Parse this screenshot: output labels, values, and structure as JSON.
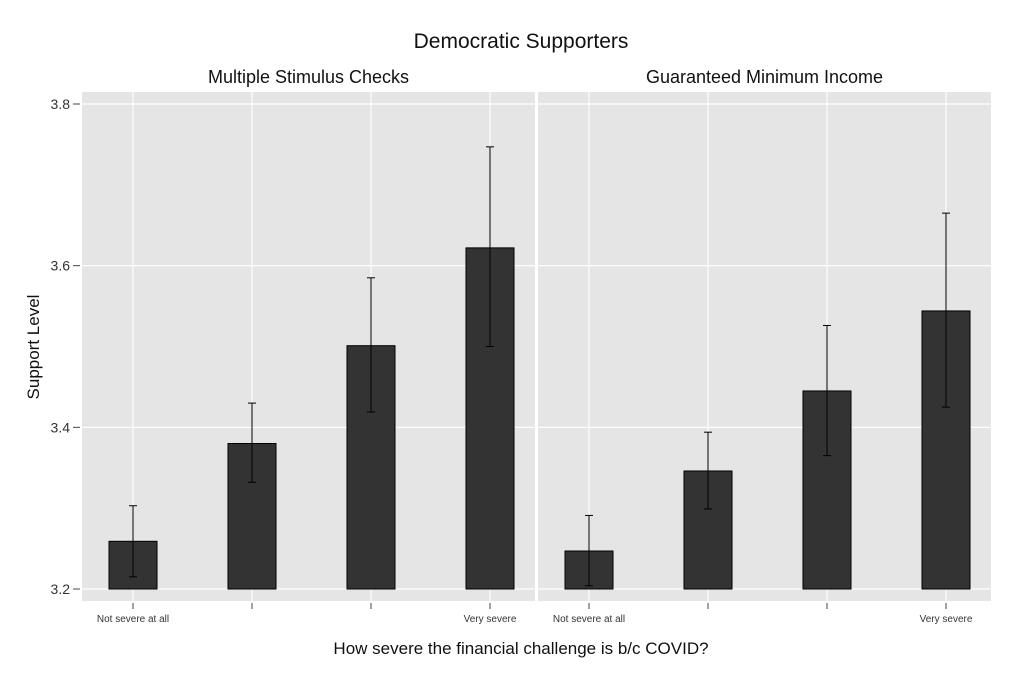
{
  "chart_data": {
    "type": "bar",
    "title": "Democratic Supporters",
    "xlabel": "How severe the financial challenge is b/c COVID?",
    "ylabel": "Support Level",
    "ylim": [
      3.2,
      3.82
    ],
    "yticks": [
      "3.2",
      "3.4",
      "3.6",
      "3.8"
    ],
    "ytick_values": [
      3.2,
      3.4,
      3.6,
      3.8
    ],
    "categories": [
      "Not severe at all",
      "",
      "",
      "Very severe"
    ],
    "grid": true,
    "colors": {
      "bar": "#333333",
      "panel": "#e5e5e5",
      "grid": "#ffffff",
      "errorbar": "#000000"
    },
    "panels": [
      {
        "title": "Multiple  Stimulus Checks",
        "values": [
          3.259,
          3.38,
          3.501,
          3.622
        ],
        "ci_low": [
          3.215,
          3.332,
          3.419,
          3.5
        ],
        "ci_high": [
          3.303,
          3.43,
          3.585,
          3.747
        ]
      },
      {
        "title": "Guaranteed Minimum Income",
        "values": [
          3.247,
          3.346,
          3.445,
          3.544
        ],
        "ci_low": [
          3.204,
          3.299,
          3.365,
          3.425
        ],
        "ci_high": [
          3.291,
          3.394,
          3.526,
          3.665
        ]
      }
    ]
  }
}
